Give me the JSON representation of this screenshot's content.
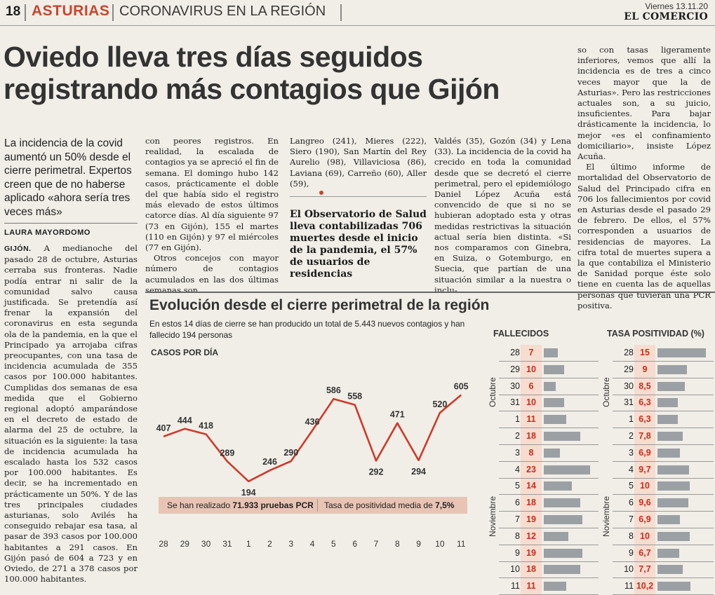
{
  "header": {
    "page_number": "18",
    "section": "ASTURIAS",
    "subsection": "CORONAVIRUS EN LA REGIÓN",
    "date": "Viernes 13.11.20",
    "newspaper": "EL COMERCIO"
  },
  "article": {
    "headline": "Oviedo lleva tres días seguidos registrando más contagios que Gijón",
    "deck": "La incidencia de la covid aumentó un 50% desde el cierre perimetral. Expertos creen que de no haberse aplicado «ahora sería tres veces más»",
    "byline": "LAURA MAYORDOMO",
    "col1_dateline": "GIJÓN.",
    "col1": "A medianoche del pasado 28 de octubre, Asturias cerraba sus fronteras. Nadie podía entrar ni salir de la comunidad salvo causa justificada. Se pretendía así frenar la expansión del coronavirus en esta segunda ola de la pandemia, en la que el Principado ya arrojaba cifras preocupantes, con una tasa de incidencia acumulada de 355 casos por 100.000 habitantes. Cumplidas dos semanas de esa medida que el Gobierno regional adoptó amparándose en el decreto de estado de alarma del 25 de octubre, la situación es la siguiente: la tasa de incidencia acumulada ha escalado hasta los 532 casos por 100.000 habitantes. Es decir, se ha incrementado en prácticamente un 50%. Y de las tres principales ciudades asturianas, solo Avilés ha conseguido rebajar esa tasa, al pasar de 393 casos por 100.000 habitantes a 291 casos. En Gijón pasó de 604 a 723 y en Oviedo, de 271 a 378 casos por 100.000 habitantes.",
    "col2": "con peores registros. En realidad, la escalada de contagios ya se apreció el fin de semana. El domingo hubo 142 casos, prácticamente el doble del que había sido el registro más elevado de estos últimos catorce días. Al día siguiente 97 (73 en Gijón), 155 el martes (110 en Gijón) y 97 el miércoles (77 en Gijón).",
    "col2b": "Otros concejos con mayor número de contagios acumulados en las dos últimas semanas son",
    "col3": "Langreo (241), Mieres (222), Siero (190), San Martín del Rey Aurelio (98), Villaviciosa (86), Laviana (69), Carreño (60), Aller (59),",
    "pullquote": "El Observatorio de Salud lleva contabilizadas 706 muertes desde el inicio de la pandemia, el 57% de usuarios de residencias",
    "col4": "Valdés (35), Gozón (34) y Lena (33). La incidencia de la covid ha crecido en toda la comunidad desde que se decretó el cierre perimetral, pero el epidemiólogo Daniel López Acuña está convencido de que si no se hubieran adoptado esta y otras medidas restrictivas la situación actual sería bien distinta. «Si nos comparamos con Ginebra, en Suiza, o Gotemburgo, en Suecia, que partían de una situación similar a la nuestra o inclu-",
    "col5a": "so con tasas ligeramente inferiores, vemos que allí la incidencia es de tres a cinco veces mayor que la de Asturias». Pero las restricciones actuales son, a su juicio, insuficientes. Para bajar drásticamente la incidencia, lo mejor «es el confinamiento domiciliario», insiste López Acuña.",
    "col5b": "El último informe de mortalidad del Observatorio de Salud del Principado cifra en 706 los fallecimientos por covid en Asturias desde el pasado 29 de febrero. De ellos, el 57% corresponden a usuarios de residencias de mayores. La cifra total de muertes supera a la que contabiliza el Ministerio de Sanidad porque éste solo tiene en cuenta las de aquellas personas que tuvieran una PCR positiva."
  },
  "graphic": {
    "title": "Evolución desde el cierre perimetral de la región",
    "subtitle": "En estos 14 días de cierre se han producido un total de 5.443 nuevos contagios y han fallecido 194 personas",
    "pcr_text_a": "Se han realizado ",
    "pcr_value": "71.933 pruebas PCR",
    "pcr_text_b": "Tasa de positividad media de ",
    "pcr_rate": "7,5%",
    "colors": {
      "line": "#cd3a2a",
      "bar": "#9ba0a5",
      "value": "#cc2a1a",
      "band": "#e8c4b4"
    }
  },
  "chart_data": [
    {
      "type": "line",
      "title": "CASOS POR DÍA",
      "categories": [
        "28",
        "29",
        "30",
        "31",
        "1",
        "2",
        "3",
        "4",
        "5",
        "6",
        "7",
        "8",
        "9",
        "10",
        "11"
      ],
      "values": [
        407,
        444,
        418,
        289,
        194,
        246,
        290,
        436,
        586,
        558,
        292,
        471,
        294,
        520,
        605
      ],
      "ylim": [
        150,
        650
      ]
    },
    {
      "type": "bar",
      "title": "FALLECIDOS",
      "months": [
        "Octubre",
        "Noviembre"
      ],
      "categories": [
        "28",
        "29",
        "30",
        "31",
        "1",
        "2",
        "3",
        "4",
        "5",
        "6",
        "7",
        "8",
        "9",
        "10",
        "11"
      ],
      "values": [
        7,
        10,
        6,
        10,
        11,
        18,
        8,
        23,
        14,
        18,
        19,
        12,
        19,
        18,
        11
      ],
      "xlim": [
        0,
        25
      ]
    },
    {
      "type": "bar",
      "title": "TASA POSITIVIDAD (%)",
      "months": [
        "Octubre",
        "Noviembre"
      ],
      "categories": [
        "28",
        "29",
        "30",
        "31",
        "1",
        "2",
        "3",
        "4",
        "5",
        "6",
        "7",
        "8",
        "9",
        "10",
        "11"
      ],
      "values": [
        15,
        9,
        8.5,
        6.3,
        6.3,
        7.8,
        6.9,
        9.7,
        10,
        9.6,
        6.9,
        10,
        6.7,
        7.7,
        10.2
      ],
      "labels": [
        "15",
        "9",
        "8,5",
        "6,3",
        "6,3",
        "7,8",
        "6,9",
        "9,7",
        "10",
        "9,6",
        "6,9",
        "10",
        "6,7",
        "7,7",
        "10,2"
      ],
      "xlim": [
        0,
        16
      ]
    }
  ]
}
